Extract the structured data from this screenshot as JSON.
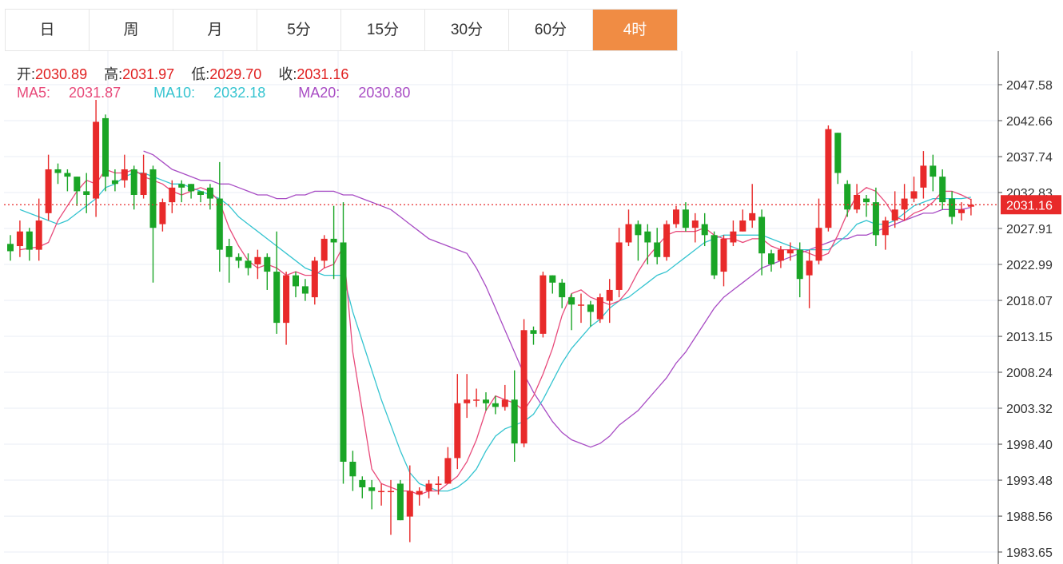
{
  "tabs": [
    {
      "label": "日",
      "active": false
    },
    {
      "label": "周",
      "active": false
    },
    {
      "label": "月",
      "active": false
    },
    {
      "label": "5分",
      "active": false
    },
    {
      "label": "15分",
      "active": false
    },
    {
      "label": "30分",
      "active": false
    },
    {
      "label": "60分",
      "active": false
    },
    {
      "label": "4时",
      "active": true
    }
  ],
  "ohlc": {
    "open_label": "开:",
    "open": "2030.89",
    "high_label": "高:",
    "high": "2031.97",
    "low_label": "低:",
    "low": "2029.70",
    "close_label": "收:",
    "close": "2031.16"
  },
  "ma": {
    "ma5_label": "MA5:",
    "ma5": "2031.87",
    "ma10_label": "MA10:",
    "ma10": "2032.18",
    "ma20_label": "MA20:",
    "ma20": "2030.80"
  },
  "colors": {
    "up": "#e82a2a",
    "down": "#1aa526",
    "ma5": "#e84a7a",
    "ma10": "#35c4d0",
    "ma20": "#a84cc4",
    "grid": "#e8eef4",
    "accent_tab": "#f08c44",
    "last_price": "#e82a2a"
  },
  "chart_data": {
    "type": "candlestick",
    "ylim": [
      1982.5,
      2050.5
    ],
    "y_ticks": [
      "2047.58",
      "2042.66",
      "2037.74",
      "2032.83",
      "2027.91",
      "2022.99",
      "2018.07",
      "2013.15",
      "2008.24",
      "2003.32",
      "1998.40",
      "1993.48",
      "1988.56",
      "1983.65"
    ],
    "last_price": "2031.16",
    "candles": [
      [
        2025.8,
        2024.8,
        2027.0,
        2023.5
      ],
      [
        2025.5,
        2027.5,
        2029.0,
        2024.0
      ],
      [
        2027.5,
        2025.0,
        2028.0,
        2023.5
      ],
      [
        2025.0,
        2029.0,
        2032.0,
        2023.5
      ],
      [
        2030.0,
        2036.0,
        2038.0,
        2029.0
      ],
      [
        2036.0,
        2035.5,
        2036.8,
        2034.0
      ],
      [
        2035.5,
        2035.0,
        2036.0,
        2033.0
      ],
      [
        2035.0,
        2033.0,
        2035.0,
        2031.0
      ],
      [
        2033.0,
        2032.5,
        2035.5,
        2030.0
      ],
      [
        2032.0,
        2042.5,
        2045.5,
        2029.5
      ],
      [
        2043.0,
        2035.0,
        2043.5,
        2033.0
      ],
      [
        2034.5,
        2034.0,
        2036.0,
        2033.0
      ],
      [
        2034.5,
        2036.0,
        2038.0,
        2033.5
      ],
      [
        2036.0,
        2032.5,
        2036.5,
        2030.5
      ],
      [
        2032.5,
        2035.5,
        2038.0,
        2032.0
      ],
      [
        2036.0,
        2028.0,
        2036.5,
        2020.5
      ],
      [
        2028.5,
        2031.5,
        2032.0,
        2027.5
      ],
      [
        2031.5,
        2033.5,
        2034.5,
        2030.0
      ],
      [
        2034.0,
        2033.5,
        2034.5,
        2031.5
      ],
      [
        2034.0,
        2033.0,
        2034.0,
        2032.0
      ],
      [
        2033.0,
        2032.5,
        2033.0,
        2031.5
      ],
      [
        2033.5,
        2032.0,
        2034.0,
        2030.5
      ],
      [
        2032.0,
        2025.0,
        2037.0,
        2022.0
      ],
      [
        2025.5,
        2024.0,
        2026.5,
        2020.5
      ],
      [
        2024.0,
        2023.5,
        2024.5,
        2022.5
      ],
      [
        2023.5,
        2022.5,
        2024.5,
        2021.5
      ],
      [
        2023.0,
        2024.0,
        2025.0,
        2021.0
      ],
      [
        2024.0,
        2022.0,
        2024.5,
        2019.5
      ],
      [
        2022.0,
        2015.0,
        2027.5,
        2013.5
      ],
      [
        2015.0,
        2021.5,
        2022.0,
        2012.0
      ],
      [
        2021.5,
        2020.0,
        2022.0,
        2018.5
      ],
      [
        2020.0,
        2019.0,
        2021.0,
        2018.0
      ],
      [
        2018.5,
        2023.5,
        2024.0,
        2017.5
      ],
      [
        2023.5,
        2026.5,
        2027.0,
        2022.5
      ],
      [
        2026.5,
        2026.0,
        2031.0,
        2021.0
      ],
      [
        2026.0,
        1996.0,
        2031.5,
        1993.0
      ],
      [
        1996.0,
        1994.0,
        1997.5,
        1992.0
      ],
      [
        1993.5,
        1992.5,
        1994.0,
        1991.0
      ],
      [
        1992.5,
        1992.0,
        1993.5,
        1989.5
      ],
      [
        1992.0,
        1992.0,
        1993.0,
        1990.0
      ],
      [
        1992.0,
        1992.0,
        1993.5,
        1986.0
      ],
      [
        1993.0,
        1988.0,
        1993.5,
        1988.0
      ],
      [
        1988.5,
        1992.0,
        1995.5,
        1985.0
      ],
      [
        1991.5,
        1992.0,
        1992.5,
        1990.0
      ],
      [
        1992.0,
        1993.0,
        1993.5,
        1991.0
      ],
      [
        1993.0,
        1993.0,
        1994.0,
        1991.5
      ],
      [
        1993.0,
        1996.5,
        1998.0,
        1993.0
      ],
      [
        1996.5,
        2004.0,
        2008.0,
        1995.0
      ],
      [
        2004.0,
        2004.5,
        2008.0,
        2002.0
      ],
      [
        2004.5,
        2004.5,
        2006.0,
        2003.5
      ],
      [
        2004.5,
        2004.0,
        2005.5,
        2003.0
      ],
      [
        2004.0,
        2003.5,
        2005.0,
        2002.5
      ],
      [
        2003.5,
        2004.5,
        2006.5,
        2003.0
      ],
      [
        2004.5,
        1998.5,
        2008.5,
        1996.0
      ],
      [
        1998.5,
        2014.0,
        2015.5,
        1998.0
      ],
      [
        2014.0,
        2013.5,
        2014.5,
        2012.0
      ],
      [
        2013.5,
        2021.5,
        2022.0,
        2013.0
      ],
      [
        2021.5,
        2020.5,
        2021.5,
        2019.0
      ],
      [
        2020.5,
        2018.5,
        2021.0,
        2017.0
      ],
      [
        2018.5,
        2017.5,
        2019.0,
        2014.0
      ],
      [
        2017.5,
        2017.5,
        2019.0,
        2015.0
      ],
      [
        2017.5,
        2016.5,
        2018.0,
        2014.5
      ],
      [
        2015.5,
        2018.5,
        2019.0,
        2015.0
      ],
      [
        2018.0,
        2019.5,
        2021.0,
        2015.0
      ],
      [
        2019.5,
        2026.0,
        2028.0,
        2018.5
      ],
      [
        2026.0,
        2028.5,
        2030.5,
        2025.5
      ],
      [
        2028.5,
        2027.0,
        2029.0,
        2023.5
      ],
      [
        2027.5,
        2026.0,
        2028.5,
        2023.0
      ],
      [
        2026.0,
        2024.0,
        2028.0,
        2023.0
      ],
      [
        2024.0,
        2028.5,
        2029.0,
        2023.5
      ],
      [
        2028.5,
        2030.5,
        2031.0,
        2028.0
      ],
      [
        2030.5,
        2028.0,
        2031.5,
        2027.5
      ],
      [
        2028.0,
        2029.0,
        2030.0,
        2026.0
      ],
      [
        2028.5,
        2027.0,
        2030.0,
        2025.5
      ],
      [
        2027.0,
        2021.5,
        2027.5,
        2021.0
      ],
      [
        2022.0,
        2026.5,
        2027.0,
        2020.0
      ],
      [
        2026.0,
        2027.5,
        2029.0,
        2025.5
      ],
      [
        2027.5,
        2029.0,
        2030.5,
        2027.5
      ],
      [
        2029.0,
        2030.0,
        2034.0,
        2028.0
      ],
      [
        2029.5,
        2024.5,
        2030.5,
        2021.5
      ],
      [
        2024.5,
        2023.0,
        2025.0,
        2022.0
      ],
      [
        2023.5,
        2025.0,
        2025.5,
        2022.5
      ],
      [
        2024.5,
        2025.0,
        2026.0,
        2023.5
      ],
      [
        2025.0,
        2021.0,
        2026.0,
        2018.5
      ],
      [
        2021.5,
        2023.5,
        2025.0,
        2017.0
      ],
      [
        2023.5,
        2028.0,
        2032.0,
        2023.0
      ],
      [
        2028.0,
        2041.5,
        2042.0,
        2027.5
      ],
      [
        2041.0,
        2035.5,
        2041.0,
        2034.0
      ],
      [
        2034.0,
        2030.5,
        2034.5,
        2029.5
      ],
      [
        2030.5,
        2032.5,
        2034.0,
        2030.0
      ],
      [
        2032.0,
        2031.5,
        2032.5,
        2029.5
      ],
      [
        2031.5,
        2027.0,
        2033.5,
        2025.5
      ],
      [
        2027.0,
        2029.0,
        2029.5,
        2025.0
      ],
      [
        2029.0,
        2030.5,
        2033.0,
        2028.0
      ],
      [
        2030.5,
        2032.0,
        2034.0,
        2029.0
      ],
      [
        2032.0,
        2033.0,
        2035.0,
        2031.5
      ],
      [
        2033.5,
        2036.5,
        2038.5,
        2032.0
      ],
      [
        2036.5,
        2035.0,
        2038.0,
        2033.0
      ],
      [
        2035.0,
        2031.5,
        2036.0,
        2030.5
      ],
      [
        2032.0,
        2029.5,
        2033.0,
        2028.5
      ],
      [
        2030.0,
        2030.5,
        2031.5,
        2029.0
      ],
      [
        2030.89,
        2031.16,
        2031.97,
        2029.7
      ]
    ],
    "ma5": [
      2025.0,
      2025.2,
      2025.4,
      2026.0,
      2029.0,
      2031.0,
      2033.0,
      2034.5,
      2034.0,
      2036.0,
      2035.5,
      2035.5,
      2036.0,
      2035.0,
      2034.5,
      2034.0,
      2033.0,
      2032.5,
      2033.0,
      2033.5,
      2033.0,
      2031.5,
      2028.0,
      2025.5,
      2023.5,
      2022.5,
      2023.0,
      2022.5,
      2021.5,
      2022.0,
      2021.5,
      2021.5,
      2022.5,
      2023.0,
      2025.5,
      2011.0,
      2003.0,
      1995.0,
      1993.0,
      1992.5,
      1992.0,
      1992.0,
      1991.5,
      1992.0,
      1992.0,
      1993.0,
      1994.0,
      1996.0,
      1999.0,
      2003.0,
      2005.0,
      2004.5,
      2004.0,
      2003.0,
      2005.0,
      2008.0,
      2011.5,
      2016.0,
      2019.0,
      2019.5,
      2018.5,
      2018.0,
      2017.5,
      2018.0,
      2019.5,
      2022.0,
      2024.0,
      2025.5,
      2027.0,
      2027.5,
      2027.5,
      2027.5,
      2028.0,
      2027.0,
      2026.5,
      2026.5,
      2026.0,
      2026.5,
      2026.5,
      2025.5,
      2025.0,
      2025.0,
      2025.0,
      2024.5,
      2024.0,
      2024.5,
      2027.0,
      2030.0,
      2032.5,
      2033.5,
      2033.0,
      2031.5,
      2029.5,
      2029.0,
      2030.0,
      2030.5,
      2031.5,
      2033.0,
      2033.0,
      2032.5,
      2031.87
    ],
    "ma10": [
      2030.5,
      2030.0,
      2029.5,
      2029.0,
      2028.5,
      2029.0,
      2030.0,
      2031.0,
      2032.0,
      2033.5,
      2034.0,
      2035.0,
      2035.5,
      2035.5,
      2035.0,
      2034.5,
      2034.0,
      2034.0,
      2033.5,
      2033.0,
      2032.5,
      2032.0,
      2031.0,
      2029.5,
      2028.5,
      2027.5,
      2026.5,
      2025.5,
      2024.5,
      2023.5,
      2022.5,
      2022.0,
      2021.5,
      2021.5,
      2021.5,
      2016.5,
      2012.5,
      2008.5,
      2004.5,
      2001.0,
      1997.5,
      1994.5,
      1993.0,
      1992.5,
      1992.0,
      1992.0,
      1992.5,
      1993.5,
      1995.0,
      1997.5,
      1999.5,
      2000.5,
      2001.0,
      2001.5,
      2002.5,
      2004.5,
      2007.0,
      2009.5,
      2011.5,
      2013.0,
      2014.5,
      2015.5,
      2017.0,
      2018.0,
      2018.5,
      2019.5,
      2020.5,
      2021.5,
      2022.0,
      2023.0,
      2024.0,
      2025.0,
      2026.0,
      2026.5,
      2027.0,
      2027.0,
      2027.0,
      2027.0,
      2027.0,
      2026.5,
      2026.0,
      2025.5,
      2025.0,
      2025.0,
      2025.0,
      2025.0,
      2026.0,
      2027.0,
      2028.5,
      2029.0,
      2028.5,
      2028.5,
      2029.0,
      2030.0,
      2031.0,
      2031.5,
      2032.0,
      2032.0,
      2032.0,
      2032.0,
      2032.18
    ],
    "ma20": [
      2038.5,
      2038.0,
      2037.0,
      2036.0,
      2035.5,
      2035.0,
      2034.5,
      2034.5,
      2034.0,
      2034.0,
      2033.5,
      2033.0,
      2032.5,
      2032.5,
      2032.0,
      2032.0,
      2032.5,
      2032.5,
      2033.0,
      2033.0,
      2033.0,
      2032.5,
      2032.5,
      2032.0,
      2031.5,
      2031.0,
      2030.5,
      2029.5,
      2028.5,
      2027.5,
      2026.5,
      2026.0,
      2025.5,
      2025.0,
      2024.5,
      2022.5,
      2020.0,
      2017.0,
      2014.0,
      2011.0,
      2008.0,
      2005.5,
      2003.5,
      2001.5,
      2000.0,
      1999.0,
      1998.5,
      1998.0,
      1998.5,
      1999.5,
      2001.0,
      2002.0,
      2003.0,
      2004.5,
      2006.0,
      2007.5,
      2009.5,
      2011.0,
      2013.0,
      2015.0,
      2017.0,
      2018.5,
      2019.5,
      2020.5,
      2021.5,
      2022.5,
      2023.0,
      2023.5,
      2024.0,
      2024.5,
      2025.0,
      2025.5,
      2026.0,
      2026.5,
      2026.5,
      2027.0,
      2027.0,
      2027.5,
      2028.0,
      2028.5,
      2029.0,
      2029.5,
      2030.0,
      2030.0,
      2030.5,
      2030.5,
      2030.5,
      2030.8
    ]
  }
}
